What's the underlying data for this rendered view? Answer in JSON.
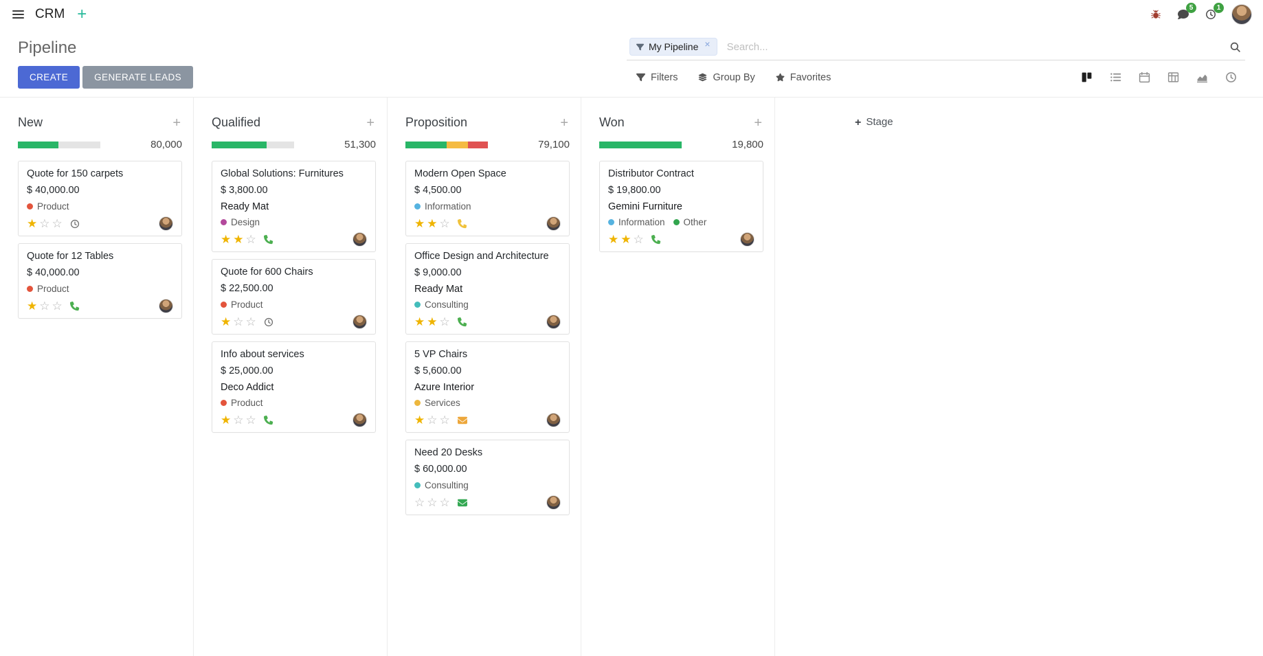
{
  "navbar": {
    "app_name": "CRM",
    "messages_badge": "5",
    "activities_badge": "1"
  },
  "control_panel": {
    "title": "Pipeline",
    "buttons": {
      "create": "CREATE",
      "generate_leads": "GENERATE LEADS"
    },
    "search": {
      "facet_label": "My Pipeline",
      "placeholder": "Search...",
      "remove": "×"
    },
    "menus": {
      "filters": "Filters",
      "group_by": "Group By",
      "favorites": "Favorites"
    }
  },
  "view_switcher": {
    "buttons": [
      {
        "name": "kanban",
        "active": true
      },
      {
        "name": "list",
        "active": false
      },
      {
        "name": "calendar",
        "active": false
      },
      {
        "name": "pivot",
        "active": false
      },
      {
        "name": "graph",
        "active": false
      },
      {
        "name": "activity",
        "active": false
      }
    ]
  },
  "board": {
    "add_column_label": "Stage",
    "columns": [
      {
        "name": "New",
        "total": "80,000",
        "progress": {
          "segments": [
            {
              "color": "#29b667",
              "pct": 49
            }
          ]
        },
        "cards": [
          {
            "title": "Quote for 150 carpets",
            "amount": "$ 40,000.00",
            "tags": [
              {
                "label": "Product",
                "color": "#e3543c"
              }
            ],
            "stars": 1,
            "activity": {
              "icon": "clock",
              "color": "#707070"
            }
          },
          {
            "title": "Quote for 12 Tables",
            "amount": "$ 40,000.00",
            "tags": [
              {
                "label": "Product",
                "color": "#e3543c"
              }
            ],
            "stars": 1,
            "activity": {
              "icon": "phone",
              "color": "#4caf50"
            }
          }
        ]
      },
      {
        "name": "Qualified",
        "total": "51,300",
        "progress": {
          "segments": [
            {
              "color": "#29b667",
              "pct": 67
            }
          ]
        },
        "cards": [
          {
            "title": "Global Solutions: Furnitures",
            "amount": "$ 3,800.00",
            "partner": "Ready Mat",
            "tags": [
              {
                "label": "Design",
                "color": "#b3499c"
              }
            ],
            "stars": 2,
            "activity": {
              "icon": "phone",
              "color": "#4caf50"
            }
          },
          {
            "title": "Quote for 600 Chairs",
            "amount": "$ 22,500.00",
            "tags": [
              {
                "label": "Product",
                "color": "#e3543c"
              }
            ],
            "stars": 1,
            "activity": {
              "icon": "clock",
              "color": "#707070"
            }
          },
          {
            "title": "Info about services",
            "amount": "$ 25,000.00",
            "partner": "Deco Addict",
            "tags": [
              {
                "label": "Product",
                "color": "#e3543c"
              }
            ],
            "stars": 1,
            "activity": {
              "icon": "phone",
              "color": "#4caf50"
            }
          }
        ]
      },
      {
        "name": "Proposition",
        "total": "79,100",
        "progress": {
          "segments": [
            {
              "color": "#29b667",
              "pct": 50
            },
            {
              "color": "#f5bb42",
              "pct": 26
            },
            {
              "color": "#e05252",
              "pct": 24
            }
          ]
        },
        "cards": [
          {
            "title": "Modern Open Space",
            "amount": "$ 4,500.00",
            "tags": [
              {
                "label": "Information",
                "color": "#56b3e0"
              }
            ],
            "stars": 2,
            "activity": {
              "icon": "phone",
              "color": "#f0c23c"
            }
          },
          {
            "title": "Office Design and Architecture",
            "amount": "$ 9,000.00",
            "partner": "Ready Mat",
            "tags": [
              {
                "label": "Consulting",
                "color": "#44bdbb"
              }
            ],
            "stars": 2,
            "activity": {
              "icon": "phone",
              "color": "#4caf50"
            }
          },
          {
            "title": "5 VP Chairs",
            "amount": "$ 5,600.00",
            "partner": "Azure Interior",
            "tags": [
              {
                "label": "Services",
                "color": "#edb73d"
              }
            ],
            "stars": 1,
            "activity": {
              "icon": "envelope",
              "color": "#eda73b"
            }
          },
          {
            "title": "Need 20 Desks",
            "amount": "$ 60,000.00",
            "tags": [
              {
                "label": "Consulting",
                "color": "#44bdbb"
              }
            ],
            "stars": 0,
            "activity": {
              "icon": "envelope",
              "color": "#34a853"
            }
          }
        ]
      },
      {
        "name": "Won",
        "total": "19,800",
        "progress": {
          "segments": [
            {
              "color": "#29b667",
              "pct": 100
            }
          ]
        },
        "cards": [
          {
            "title": "Distributor Contract",
            "amount": "$ 19,800.00",
            "partner": "Gemini Furniture",
            "tags": [
              {
                "label": "Information",
                "color": "#56b3e0"
              },
              {
                "label": "Other",
                "color": "#32a54e"
              }
            ],
            "stars": 2,
            "activity": {
              "icon": "phone",
              "color": "#4caf50"
            }
          }
        ]
      }
    ]
  },
  "icons": {
    "menu_toggle": "hamburger",
    "add_menu": "plus",
    "debug": "bug",
    "messages": "chat-bubble",
    "activities": "clock",
    "search": "magnifier",
    "filters": "funnel",
    "group_by": "layers",
    "favorites": "star",
    "card_activity_types": [
      "clock",
      "phone",
      "envelope"
    ],
    "views": [
      "kanban",
      "list",
      "calendar",
      "pivot",
      "graph",
      "activity"
    ]
  },
  "colors": {
    "primary_button": "#4c69d4",
    "secondary_button": "#8b95a1",
    "star_gold": "#efb400",
    "badge": "#3fa142",
    "navbar_plus": "#26b99a"
  }
}
